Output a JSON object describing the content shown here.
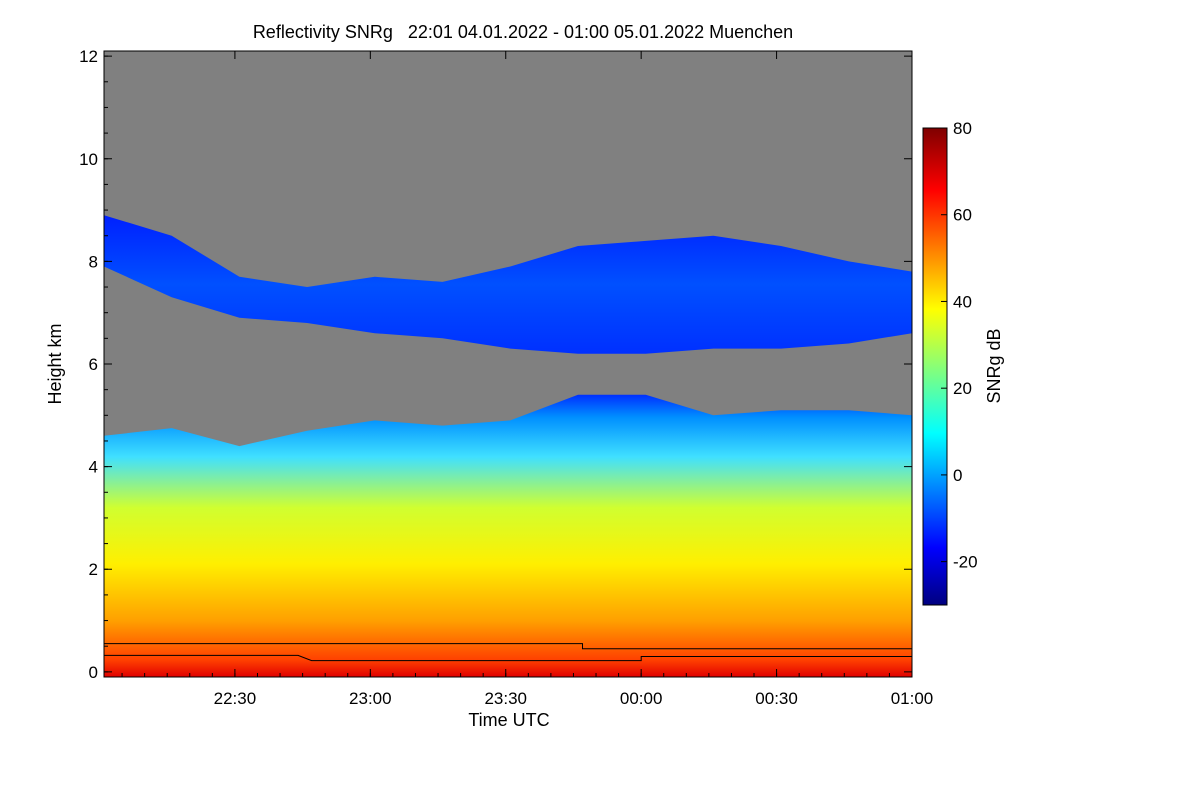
{
  "chart_data": {
    "type": "heatmap",
    "title": "Reflectivity SNRg   22:01 04.01.2022 - 01:00 05.01.2022 Muenchen",
    "xlabel": "Time UTC",
    "ylabel": "Height km",
    "x_ticks": [
      "22:30",
      "23:00",
      "23:30",
      "00:00",
      "00:30",
      "01:00"
    ],
    "x_tick_minutes": [
      29,
      59,
      89,
      119,
      149,
      179
    ],
    "x_range_minutes": [
      0,
      179
    ],
    "y_ticks": [
      "0",
      "2",
      "4",
      "6",
      "8",
      "10",
      "12"
    ],
    "y_tick_values": [
      0,
      2,
      4,
      6,
      8,
      10,
      12
    ],
    "ylim": [
      -0.1,
      12.1
    ],
    "colorbar": {
      "label": "SNRg dB",
      "ticks": [
        "-20",
        "0",
        "20",
        "40",
        "60",
        "80"
      ],
      "tick_values": [
        -20,
        0,
        20,
        40,
        60,
        80
      ],
      "range": [
        -30,
        80
      ],
      "colormap": "jet"
    },
    "background_color": "#808080",
    "layers": [
      {
        "name": "lower layer",
        "top_km": [
          4.6,
          4.75,
          4.4,
          4.7,
          4.9,
          4.8,
          4.9,
          5.4,
          5.4,
          5.0,
          5.1,
          5.1,
          5.0
        ],
        "top_minutes": [
          0,
          15,
          30,
          45,
          60,
          75,
          90,
          105,
          120,
          135,
          150,
          165,
          179
        ]
      },
      {
        "name": "upper layer",
        "top_km": [
          8.9,
          8.5,
          7.7,
          7.5,
          7.7,
          7.6,
          7.9,
          8.3,
          8.4,
          8.5,
          8.3,
          8.0,
          7.8
        ],
        "base_km": [
          7.9,
          7.3,
          6.9,
          6.8,
          6.6,
          6.5,
          6.3,
          6.2,
          6.2,
          6.3,
          6.3,
          6.4,
          6.6
        ],
        "minutes": [
          0,
          15,
          30,
          45,
          60,
          75,
          90,
          105,
          120,
          135,
          150,
          165,
          179
        ]
      }
    ],
    "lines": [
      {
        "name": "upper step line",
        "minutes": [
          0,
          106,
          106,
          179
        ],
        "km": [
          0.55,
          0.55,
          0.45,
          0.45
        ]
      },
      {
        "name": "lower step line",
        "minutes": [
          0,
          43,
          46,
          119,
          119,
          179
        ],
        "km": [
          0.32,
          0.32,
          0.22,
          0.22,
          0.3,
          0.3
        ]
      }
    ]
  }
}
